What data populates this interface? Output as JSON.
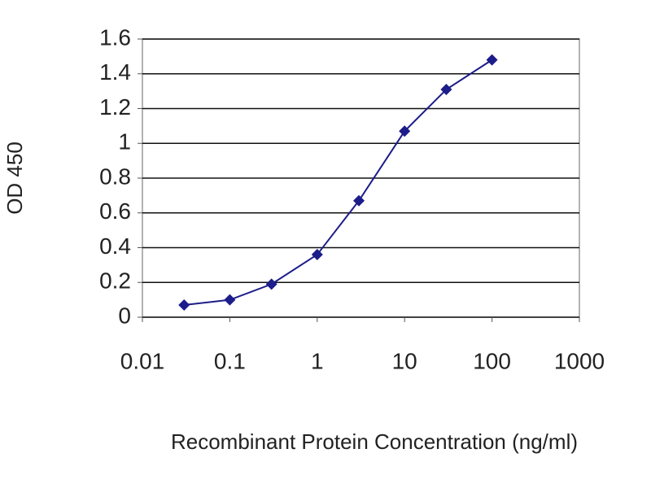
{
  "chart_data": {
    "type": "line",
    "x_label": "Recombinant Protein Concentration (ng/ml)",
    "y_label": "OD 450",
    "x": [
      0.03,
      0.1,
      0.3,
      1,
      3,
      10,
      30,
      100
    ],
    "series": [
      {
        "color": "#1c1c8a",
        "values": [
          0.07,
          0.1,
          0.19,
          0.36,
          0.67,
          1.07,
          1.31,
          1.48
        ]
      }
    ],
    "xscale": "log",
    "xlim": [
      0.01,
      1000
    ],
    "xticks": [
      0.01,
      0.1,
      1,
      10,
      100,
      1000
    ],
    "ylim": [
      0,
      1.6
    ],
    "yticks": [
      0,
      0.2,
      0.4,
      0.6,
      0.8,
      1,
      1.2,
      1.4,
      1.6
    ],
    "grid": true
  }
}
